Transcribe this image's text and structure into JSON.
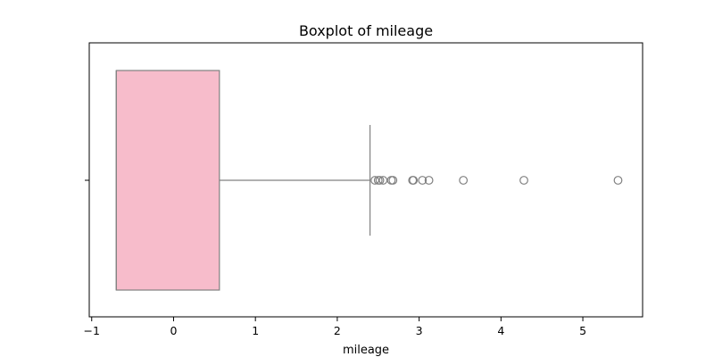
{
  "chart_data": {
    "type": "boxplot",
    "title": "Boxplot of mileage",
    "xlabel": "mileage",
    "ylabel": "",
    "orientation": "horizontal",
    "xlim": [
      -1.03,
      5.73
    ],
    "x_ticks": [
      -1,
      0,
      1,
      2,
      3,
      4,
      5
    ],
    "x_tick_labels": [
      "−1",
      "0",
      "1",
      "2",
      "3",
      "4",
      "5"
    ],
    "grid": false,
    "box": {
      "q1": -0.7,
      "median": -0.7,
      "q3": 0.56,
      "whisker_low": -0.7,
      "whisker_high": 2.4,
      "fill_color": "#f7bccb",
      "edge_color": "#808080"
    },
    "outliers": [
      2.46,
      2.5,
      2.52,
      2.56,
      2.66,
      2.68,
      2.92,
      2.93,
      3.04,
      3.12,
      3.54,
      4.28,
      5.43
    ],
    "outlier_color": "#808080"
  }
}
